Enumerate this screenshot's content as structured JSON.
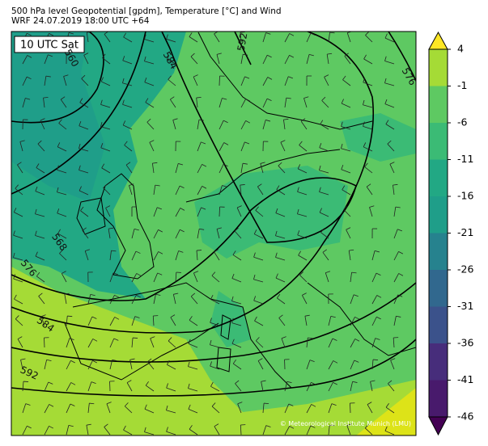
{
  "title_lines": [
    "500 hPa level Geopotential [gpdm], Temperature [°C] and Wind",
    "WRF 24.07.2019 18:00 UTC +64"
  ],
  "time_label": "10 UTC Sat",
  "copyright": "© Meteorological Institute Munich (LMU)",
  "contour_labels": [
    "560",
    "584",
    "592",
    "576",
    "568",
    "576",
    "584",
    "592"
  ],
  "colorbar": {
    "ticks": [
      4,
      -1,
      -6,
      -11,
      -16,
      -21,
      -26,
      -31,
      -36,
      -41,
      -46
    ],
    "colors": [
      "#fde725",
      "#a5db36",
      "#5ec962",
      "#3bbb75",
      "#22a884",
      "#1f9e89",
      "#26828e",
      "#31688e",
      "#3b528b",
      "#472d7b",
      "#481a6c",
      "#440154"
    ]
  }
}
